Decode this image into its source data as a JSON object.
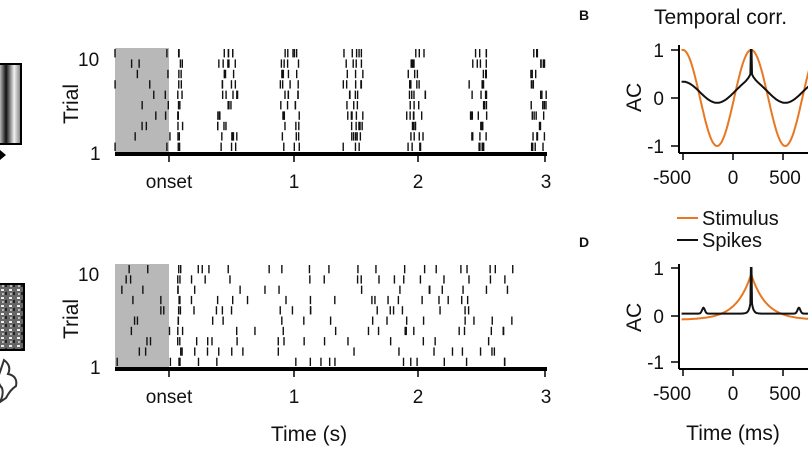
{
  "figure": {
    "panel_labels": [
      "B",
      "D"
    ],
    "colors": {
      "stimulus": "#e87722",
      "spikes": "#111111",
      "shade": "#b8b8b8"
    },
    "icons": [
      "grating-stimulus-icon",
      "natural-image-stimulus-icon",
      "animal-silhouette-icon"
    ]
  },
  "chart_data": [
    {
      "id": "raster-top",
      "type": "scatter",
      "subtype": "raster",
      "ylabel": "Trial",
      "xlabel": "",
      "y_tick_labels": [
        "10",
        "1"
      ],
      "x_tick_labels": [
        "onset",
        "1",
        "2",
        "3"
      ],
      "xlim": [
        -0.45,
        3.0
      ],
      "ylim": [
        1,
        10
      ],
      "shaded_interval": [
        -0.45,
        0.0
      ],
      "stimulus_cycle_s": 0.5,
      "trials": 10
    },
    {
      "id": "raster-bottom",
      "type": "scatter",
      "subtype": "raster",
      "ylabel": "Trial",
      "xlabel": "Time (s)",
      "y_tick_labels": [
        "10",
        "1"
      ],
      "x_tick_labels": [
        "onset",
        "1",
        "2",
        "3"
      ],
      "xlim": [
        -0.45,
        3.0
      ],
      "ylim": [
        1,
        10
      ],
      "shaded_interval": [
        -0.45,
        0.0
      ],
      "trials": 10
    },
    {
      "id": "ac-top",
      "type": "line",
      "title": "Temporal corr.",
      "ylabel": "AC",
      "xlabel": "",
      "x_tick_labels": [
        "-500",
        "0",
        "500"
      ],
      "y_tick_labels": [
        "1",
        "0",
        "-1"
      ],
      "xlim": [
        -500,
        600
      ],
      "ylim": [
        -1,
        1
      ],
      "series": [
        {
          "name": "Stimulus",
          "color": "#e87722",
          "shape": "cosine",
          "period_ms": 500
        },
        {
          "name": "Spikes",
          "color": "#111111",
          "shape": "weak-oscillation-with-peak"
        }
      ]
    },
    {
      "id": "ac-bottom",
      "type": "line",
      "ylabel": "AC",
      "xlabel": "Time (ms)",
      "x_tick_labels": [
        "-500",
        "0",
        "500"
      ],
      "y_tick_labels": [
        "1",
        "0",
        "-1"
      ],
      "xlim": [
        -500,
        600
      ],
      "ylim": [
        -1,
        1
      ],
      "legend": [
        "Stimulus",
        "Spikes"
      ],
      "series": [
        {
          "name": "Stimulus",
          "color": "#e87722",
          "shape": "exponential-decay"
        },
        {
          "name": "Spikes",
          "color": "#111111",
          "shape": "sharp-peak"
        }
      ]
    }
  ]
}
